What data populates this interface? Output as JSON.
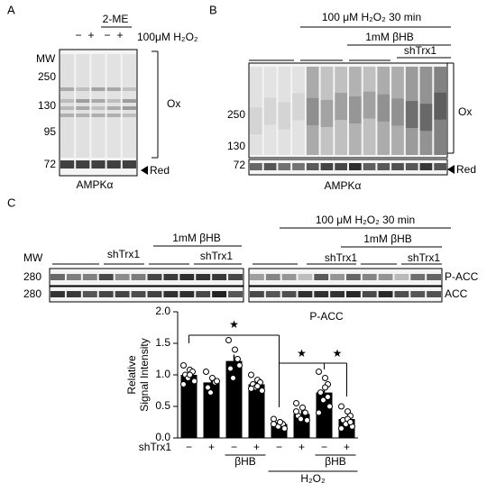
{
  "panel_a": {
    "label": "A",
    "treatment_group": "2-ME",
    "lane_signs": [
      "−",
      "+",
      "−",
      "+"
    ],
    "treatment": "100μM H₂O₂",
    "mw_title": "MW",
    "mw": [
      "250",
      "130",
      "95",
      "72"
    ],
    "ox": "Ox",
    "red": "Red",
    "protein": "AMPKα"
  },
  "panel_b": {
    "label": "B",
    "treatment": "100 μM H₂O₂ 30 min",
    "treatment2": "1mM βHB",
    "treatment3": "shTrx1",
    "mw": [
      "250",
      "130",
      "72"
    ],
    "ox": "Ox",
    "red": "Red",
    "protein": "AMPKα"
  },
  "panel_c": {
    "label": "C",
    "left": {
      "treatment": "1mM βHB",
      "sh1": "shTrx1",
      "sh2": "shTrx1"
    },
    "right": {
      "treatment": "100 μM H₂O₂ 30 min",
      "treatment2": "1mM βHB",
      "sh1": "shTrx1",
      "sh2": "shTrx1"
    },
    "mw_title": "MW",
    "mw": [
      "280",
      "280"
    ],
    "rows": [
      "P-ACC",
      "ACC"
    ]
  },
  "chart_data": {
    "type": "bar",
    "title": "P-ACC",
    "y_label": [
      "Relative",
      "Signal Intensity"
    ],
    "ylim": [
      0,
      2
    ],
    "yticks": [
      {
        "value": 0,
        "label": "0.0"
      },
      {
        "value": 0.5,
        "label": "0.5"
      },
      {
        "value": 1,
        "label": "1.0"
      },
      {
        "value": 1.5,
        "label": "1.5"
      },
      {
        "value": 2,
        "label": "2.0"
      }
    ],
    "row_label": "shTrx1",
    "categories": [
      "−",
      "+",
      "−",
      "+",
      "−",
      "+",
      "−",
      "+"
    ],
    "values": [
      1.0,
      0.88,
      1.22,
      0.85,
      0.22,
      0.38,
      0.72,
      0.3
    ],
    "errors": [
      0.05,
      0.07,
      0.1,
      0.04,
      0.03,
      0.05,
      0.08,
      0.05
    ],
    "points": [
      [
        1.15,
        1.08,
        1.05,
        1.0,
        0.95,
        0.9,
        0.85,
        1.0
      ],
      [
        1.05,
        0.95,
        0.88,
        0.8,
        0.72,
        0.9
      ],
      [
        1.55,
        1.4,
        1.25,
        1.1,
        0.95,
        1.15
      ],
      [
        1.0,
        0.92,
        0.88,
        0.85,
        0.8,
        0.75,
        0.78,
        0.82
      ],
      [
        0.3,
        0.25,
        0.22,
        0.2,
        0.18,
        0.15,
        0.22,
        0.25
      ],
      [
        0.55,
        0.48,
        0.4,
        0.35,
        0.3,
        0.28,
        0.42
      ],
      [
        1.05,
        0.95,
        0.85,
        0.72,
        0.6,
        0.5,
        0.4,
        0.8,
        0.65
      ],
      [
        0.5,
        0.42,
        0.35,
        0.28,
        0.22,
        0.18,
        0.15,
        0.3,
        0.25
      ]
    ],
    "group_labels": [
      "βHB",
      "βHB",
      "H₂O₂"
    ],
    "significance": [
      "★",
      "★",
      "★"
    ],
    "color": "#000000"
  }
}
